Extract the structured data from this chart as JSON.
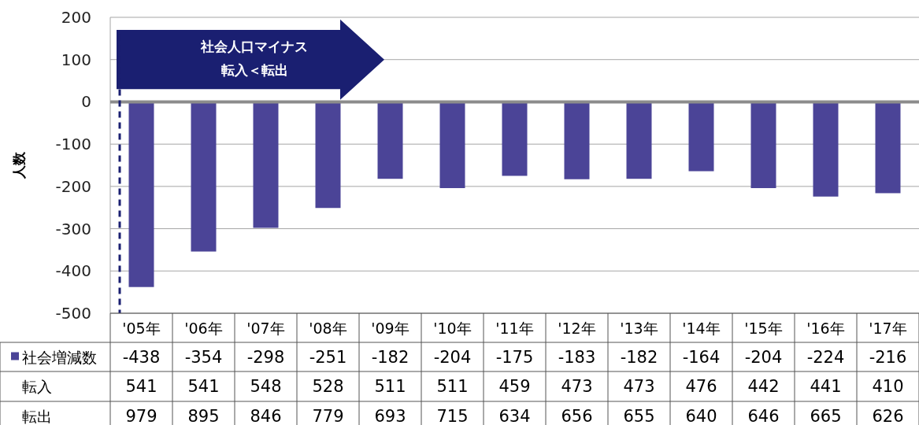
{
  "chart_data": {
    "type": "bar",
    "ylabel": "人数",
    "categories": [
      "'05年",
      "'06年",
      "'07年",
      "'08年",
      "'09年",
      "'10年",
      "'11年",
      "'12年",
      "'13年",
      "'14年",
      "'15年",
      "'16年",
      "'17年"
    ],
    "series": [
      {
        "name": "社会増減数",
        "color": "#4b4497",
        "values": [
          -438,
          -354,
          -298,
          -251,
          -182,
          -204,
          -175,
          -183,
          -182,
          -164,
          -204,
          -224,
          -216
        ]
      },
      {
        "name": "転入",
        "values": [
          null,
          null,
          null,
          null,
          null,
          null,
          null,
          null,
          null,
          null,
          null,
          null,
          null
        ],
        "value_labels": [
          "541",
          "541",
          "548",
          "528",
          "511",
          "511",
          "459",
          "473",
          "473",
          "476",
          "442",
          "441",
          "410"
        ]
      },
      {
        "name": "転出",
        "values": [
          null,
          null,
          null,
          null,
          null,
          null,
          null,
          null,
          null,
          null,
          null,
          null,
          null
        ],
        "value_labels": [
          "979",
          "895",
          "846",
          "779",
          "693",
          "715",
          "634",
          "656",
          "655",
          "640",
          "646",
          "665",
          "626"
        ]
      }
    ],
    "ylim": [
      -500,
      200
    ],
    "yticks": [
      -500,
      -400,
      -300,
      -200,
      -100,
      0,
      100,
      200
    ],
    "grid": "y",
    "data_labels": true,
    "ref_lines": [
      {
        "axis": "x",
        "value": "'05年",
        "color": "#1a1f71",
        "line_style": "dashed"
      }
    ],
    "annotations": [
      "社会人口マイナス",
      "転入＜転出"
    ]
  }
}
